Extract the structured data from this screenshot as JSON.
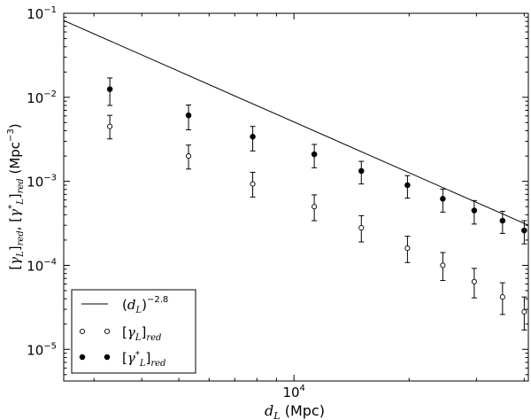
{
  "chart_data": {
    "type": "scatter",
    "xscale": "log",
    "yscale": "log",
    "xlim": [
      2500,
      41000
    ],
    "ylim": [
      4.2e-06,
      0.1
    ],
    "grid": false,
    "legend_position": "bottom-left",
    "xlabel": {
      "var": "d",
      "sub": "L",
      "unit": " (Mpc)"
    },
    "ylabel": "[γL]red, [γ*L]red (Mpc⁻³)",
    "xticks": [
      {
        "value": 10000,
        "base": "10",
        "exp": "4"
      }
    ],
    "yticks": [
      {
        "value": 0.1,
        "base": "10",
        "exp": "-1"
      },
      {
        "value": 0.01,
        "base": "10",
        "exp": "-2"
      },
      {
        "value": 0.001,
        "base": "10",
        "exp": "-3"
      },
      {
        "value": 0.0001,
        "base": "10",
        "exp": "-4"
      },
      {
        "value": 1e-05,
        "base": "10",
        "exp": "-5"
      }
    ],
    "series": [
      {
        "name": "(dL)^-2.8",
        "kind": "line",
        "x": [
          2500,
          41000
        ],
        "y": [
          0.082,
          0.0003
        ]
      },
      {
        "name": "[γL]red",
        "kind": "points-open",
        "x": [
          3300,
          5300,
          7800,
          11300,
          15000,
          19800,
          24500,
          29600,
          35100,
          40000
        ],
        "y": [
          0.0045,
          0.002,
          0.00093,
          0.0005,
          0.00028,
          0.00016,
          0.0001,
          6.4e-05,
          4.2e-05,
          2.8e-05
        ],
        "err_lo": [
          0.0013,
          0.0006,
          0.00028,
          0.00016,
          9e-05,
          5.2e-05,
          3.4e-05,
          2.3e-05,
          1.6e-05,
          1.1e-05
        ],
        "err_hi": [
          0.0016,
          0.0007,
          0.00035,
          0.00019,
          0.00011,
          6.2e-05,
          4.2e-05,
          2.8e-05,
          2e-05,
          1.4e-05
        ]
      },
      {
        "name": "[γ*L]red",
        "kind": "points-filled",
        "x": [
          3300,
          5300,
          7800,
          11300,
          15000,
          19800,
          24500,
          29600,
          35100,
          40000
        ],
        "y": [
          0.0125,
          0.0061,
          0.0034,
          0.0021,
          0.00133,
          0.0009,
          0.00062,
          0.00045,
          0.00034,
          0.00026
        ],
        "err_lo": [
          0.0045,
          0.002,
          0.0011,
          0.00065,
          0.0004,
          0.00027,
          0.00019,
          0.00014,
          0.0001,
          8e-05
        ],
        "err_hi": [
          0.0045,
          0.002,
          0.0011,
          0.00065,
          0.0004,
          0.00027,
          0.00019,
          0.00014,
          0.0001,
          8e-05
        ]
      }
    ]
  }
}
